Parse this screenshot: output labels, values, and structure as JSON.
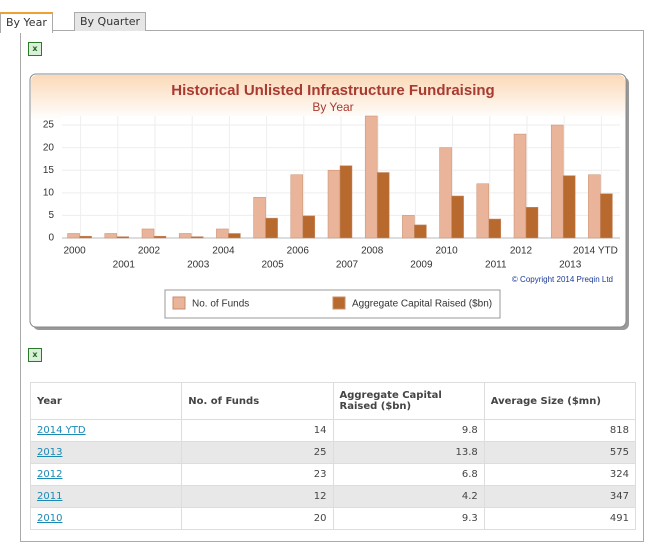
{
  "tabs": [
    "By Year",
    "By Quarter"
  ],
  "chart_data": {
    "type": "bar",
    "title": "Historical Unlisted Infrastructure Fundraising",
    "subtitle": "By Year",
    "categories": [
      "2000",
      "2001",
      "2002",
      "2003",
      "2004",
      "2005",
      "2006",
      "2007",
      "2008",
      "2009",
      "2010",
      "2011",
      "2012",
      "2013",
      "2014 YTD"
    ],
    "series": [
      {
        "name": "No. of Funds",
        "color": "#e9b49a",
        "values": [
          1,
          1,
          2,
          1,
          2,
          9,
          14,
          15,
          27,
          5,
          20,
          12,
          23,
          25,
          14
        ]
      },
      {
        "name": "Aggregate Capital Raised ($bn)",
        "color": "#b86a2e",
        "values": [
          0.4,
          0.3,
          0.4,
          0.3,
          1.0,
          4.4,
          4.9,
          16,
          14.5,
          2.9,
          9.3,
          4.2,
          6.8,
          13.8,
          9.8
        ]
      }
    ],
    "ylim": [
      0,
      27
    ],
    "yticks": [
      0,
      5,
      10,
      15,
      20,
      25
    ],
    "grid": true,
    "copyright": "© Copyright 2014 Preqin Ltd"
  },
  "table": {
    "header": [
      "Year",
      "No. of Funds",
      "Aggregate Capital Raised ($bn)",
      "Average Size ($mn)"
    ],
    "rows": [
      [
        "2014 YTD",
        "14",
        "9.8",
        "818"
      ],
      [
        "2013",
        "25",
        "13.8",
        "575"
      ],
      [
        "2012",
        "23",
        "6.8",
        "324"
      ],
      [
        "2011",
        "12",
        "4.2",
        "347"
      ],
      [
        "2010",
        "20",
        "9.3",
        "491"
      ]
    ]
  }
}
